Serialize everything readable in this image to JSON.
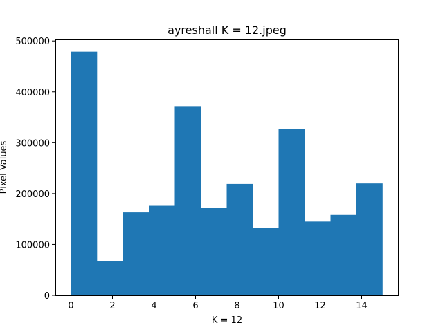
{
  "chart_data": {
    "type": "bar",
    "title": "ayreshall K = 12.jpeg",
    "xlabel": "K = 12",
    "ylabel": "Pixel Values",
    "bin_edges": [
      0,
      1.25,
      2.5,
      3.75,
      5,
      6.25,
      7.5,
      8.75,
      10,
      11.25,
      12.5,
      13.75,
      15
    ],
    "values": [
      479000,
      67000,
      163000,
      176000,
      372000,
      172000,
      219000,
      133000,
      327000,
      145000,
      158000,
      220000
    ],
    "xlim": [
      -0.75,
      15.75
    ],
    "ylim": [
      0,
      503000
    ],
    "xticks": [
      0,
      2,
      4,
      6,
      8,
      10,
      12,
      14
    ],
    "yticks": [
      0,
      100000,
      200000,
      300000,
      400000,
      500000
    ],
    "bar_color": "#1f77b4",
    "grid": false,
    "legend": "none"
  }
}
